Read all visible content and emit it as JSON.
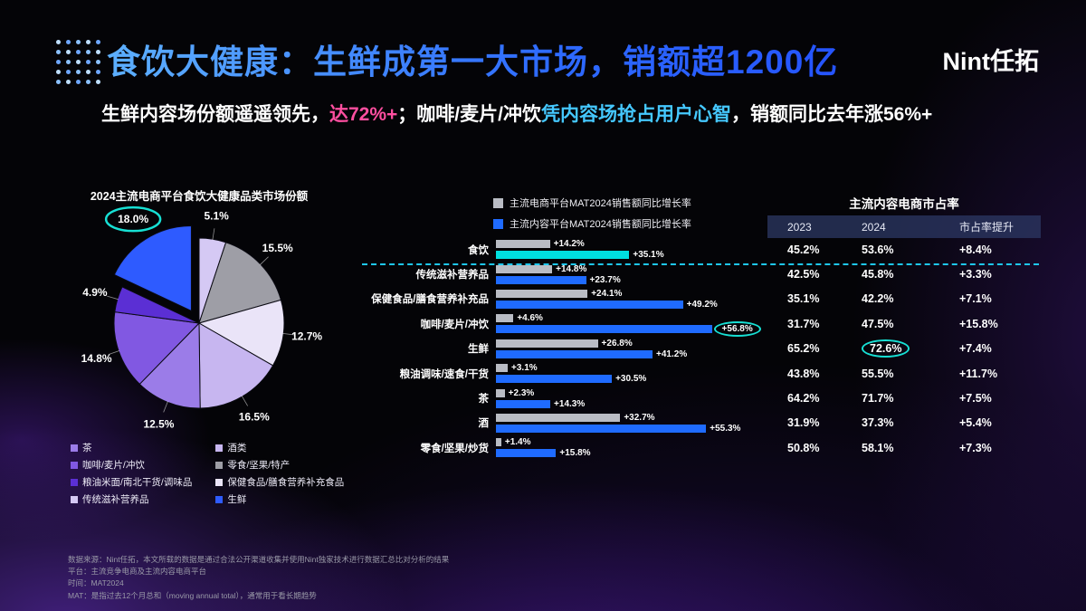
{
  "colors": {
    "title_gradient_start": "#5db0ff",
    "title_gradient_end": "#2554ff",
    "accent_pink": "#ff4fa0",
    "accent_cyan": "#45c8ff",
    "highlight_teal": "#17e0d4",
    "bar_gray": "#b9bcc4",
    "bar_blue": "#1f6bff",
    "bar_highlight_cyan": "#00e0e0",
    "fresh_blue": "#2e5bff"
  },
  "header": {
    "title": "食饮大健康：生鲜成第一大市场，销额超1200亿",
    "logo": "Nint任拓",
    "subtitle_parts": [
      {
        "text": "生鲜内容场份额遥遥领先，",
        "style": "white"
      },
      {
        "text": "达72%+",
        "style": "pink"
      },
      {
        "text": "；咖啡/麦片/冲饮",
        "style": "white"
      },
      {
        "text": "凭内容场抢占用户心智",
        "style": "cyan"
      },
      {
        "text": "，销额同比去年涨56%+",
        "style": "white"
      }
    ]
  },
  "chart_data": [
    {
      "type": "pie",
      "title": "2024主流电商平台食饮大健康品类市场份额",
      "slices": [
        {
          "label": "5.1%",
          "value": 5.1,
          "color": "#d5c9f4"
        },
        {
          "label": "15.5%",
          "value": 15.5,
          "color": "#9e9ea6"
        },
        {
          "label": "12.7%",
          "value": 12.7,
          "color": "#eae4f8"
        },
        {
          "label": "16.5%",
          "value": 16.5,
          "color": "#c7b6f0"
        },
        {
          "label": "12.5%",
          "value": 12.5,
          "color": "#9b7ce8"
        },
        {
          "label": "14.8%",
          "value": 14.8,
          "color": "#8158e2"
        },
        {
          "label": "4.9%",
          "value": 4.9,
          "color": "#5b2fd4"
        },
        {
          "label": "18.0%",
          "value": 18.0,
          "color": "#2e5bff",
          "exploded": true,
          "circled": true
        }
      ],
      "legend": [
        {
          "label": "茶",
          "color": "#9b7ce8"
        },
        {
          "label": "咖啡/麦片/冲饮",
          "color": "#8158e2"
        },
        {
          "label": "粮油米面/南北干货/调味品",
          "color": "#5b2fd4"
        },
        {
          "label": "传统滋补营养品",
          "color": "#d5c9f4"
        },
        {
          "label": "酒类",
          "color": "#c7b6f0"
        },
        {
          "label": "零食/坚果/特产",
          "color": "#9e9ea6"
        },
        {
          "label": "保健食品/膳食营养补充食品",
          "color": "#eae4f8"
        },
        {
          "label": "生鲜",
          "color": "#2e5bff"
        }
      ]
    },
    {
      "type": "bar",
      "orientation": "horizontal",
      "unit": "%",
      "legend": [
        {
          "label": "主流电商平台MAT2024销售额同比增长率",
          "color": "#b9bcc4"
        },
        {
          "label": "主流内容平台MAT2024销售额同比增长率",
          "color": "#1f6bff"
        }
      ],
      "rows": [
        {
          "label": "食饮",
          "ecom": {
            "value": 14.2,
            "text": "+14.2%"
          },
          "content": {
            "value": 35.1,
            "text": "+35.1%",
            "highlight": true
          }
        },
        {
          "label": "传统滋补营养品",
          "ecom": {
            "value": 14.8,
            "text": "+14.8%"
          },
          "content": {
            "value": 23.7,
            "text": "+23.7%"
          }
        },
        {
          "label": "保健食品/膳食营养补充品",
          "ecom": {
            "value": 24.1,
            "text": "+24.1%"
          },
          "content": {
            "value": 49.2,
            "text": "+49.2%"
          }
        },
        {
          "label": "咖啡/麦片/冲饮",
          "ecom": {
            "value": 4.6,
            "text": "+4.6%"
          },
          "content": {
            "value": 56.8,
            "text": "+56.8%",
            "circled": true
          }
        },
        {
          "label": "生鲜",
          "ecom": {
            "value": 26.8,
            "text": "+26.8%"
          },
          "content": {
            "value": 41.2,
            "text": "+41.2%"
          }
        },
        {
          "label": "粮油调味/速食/干货",
          "ecom": {
            "value": 3.1,
            "text": "+3.1%"
          },
          "content": {
            "value": 30.5,
            "text": "+30.5%"
          }
        },
        {
          "label": "茶",
          "ecom": {
            "value": 2.3,
            "text": "+2.3%"
          },
          "content": {
            "value": 14.3,
            "text": "+14.3%"
          }
        },
        {
          "label": "酒",
          "ecom": {
            "value": 32.7,
            "text": "+32.7%"
          },
          "content": {
            "value": 55.3,
            "text": "+55.3%"
          }
        },
        {
          "label": "零食/坚果/炒货",
          "ecom": {
            "value": 1.4,
            "text": "+1.4%"
          },
          "content": {
            "value": 15.8,
            "text": "+15.8%"
          }
        }
      ]
    },
    {
      "type": "table",
      "title": "主流内容电商市占率",
      "columns": [
        "2023",
        "2024",
        "市占率提升"
      ],
      "row_labels": [
        "食饮",
        "传统滋补营养品",
        "保健食品/膳食营养补充品",
        "咖啡/麦片/冲饮",
        "生鲜",
        "粮油调味/速食/干货",
        "茶",
        "酒",
        "零食/坚果/炒货"
      ],
      "rows": [
        {
          "y2023": "45.2%",
          "y2024": "53.6%",
          "delta": "+8.4%"
        },
        {
          "y2023": "42.5%",
          "y2024": "45.8%",
          "delta": "+3.3%"
        },
        {
          "y2023": "35.1%",
          "y2024": "42.2%",
          "delta": "+7.1%"
        },
        {
          "y2023": "31.7%",
          "y2024": "47.5%",
          "delta": "+15.8%"
        },
        {
          "y2023": "65.2%",
          "y2024": "72.6%",
          "delta": "+7.4%",
          "circled": "y2024"
        },
        {
          "y2023": "43.8%",
          "y2024": "55.5%",
          "delta": "+11.7%"
        },
        {
          "y2023": "64.2%",
          "y2024": "71.7%",
          "delta": "+7.5%"
        },
        {
          "y2023": "31.9%",
          "y2024": "37.3%",
          "delta": "+5.4%"
        },
        {
          "y2023": "50.8%",
          "y2024": "58.1%",
          "delta": "+7.3%"
        }
      ]
    }
  ],
  "footer": {
    "lines": [
      "数据来源：Nint任拓，本文所载的数据是通过合法公开渠道收集并使用Nint独家技术进行数据汇总比对分析的结果",
      "平台：主流竞争电商及主流内容电商平台",
      "时间：MAT2024",
      "MAT：是指过去12个月总和（moving annual total），通常用于看长期趋势"
    ]
  }
}
